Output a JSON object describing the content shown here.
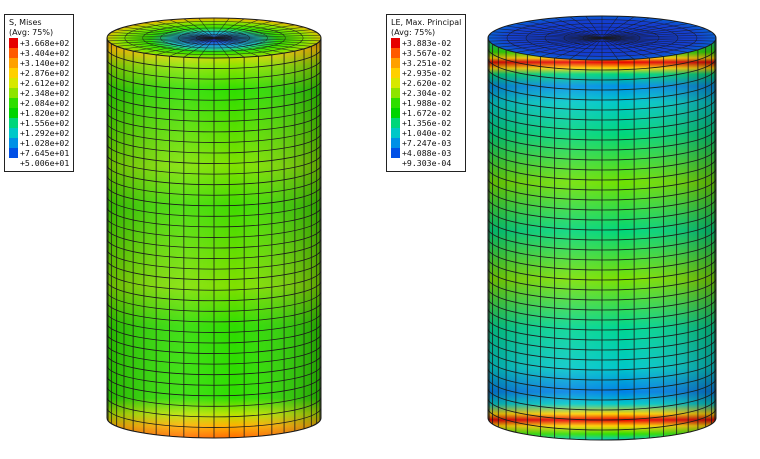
{
  "left_legend": {
    "title": "S, Mises",
    "subtitle": "(Avg: 75%)",
    "values": [
      "+3.668e+02",
      "+3.404e+02",
      "+3.140e+02",
      "+2.876e+02",
      "+2.612e+02",
      "+2.348e+02",
      "+2.084e+02",
      "+1.820e+02",
      "+1.556e+02",
      "+1.292e+02",
      "+1.028e+02",
      "+7.645e+01",
      "+5.006e+01"
    ]
  },
  "right_legend": {
    "title": "LE, Max. Principal",
    "subtitle": "(Avg: 75%)",
    "values": [
      "+3.883e-02",
      "+3.567e-02",
      "+3.251e-02",
      "+2.935e-02",
      "+2.620e-02",
      "+2.304e-02",
      "+1.988e-02",
      "+1.672e-02",
      "+1.356e-02",
      "+1.040e-02",
      "+7.247e-03",
      "+4.088e-03",
      "+9.303e-04"
    ]
  },
  "colors": {
    "contour_scale": [
      "#e60000",
      "#ff5a00",
      "#ffa000",
      "#ffd000",
      "#d7e800",
      "#8ee400",
      "#2ede00",
      "#00d400",
      "#00d67a",
      "#00c8c8",
      "#0090e6",
      "#0050e6",
      "#0000d8"
    ],
    "mesh_line": "#1a1a1a"
  }
}
